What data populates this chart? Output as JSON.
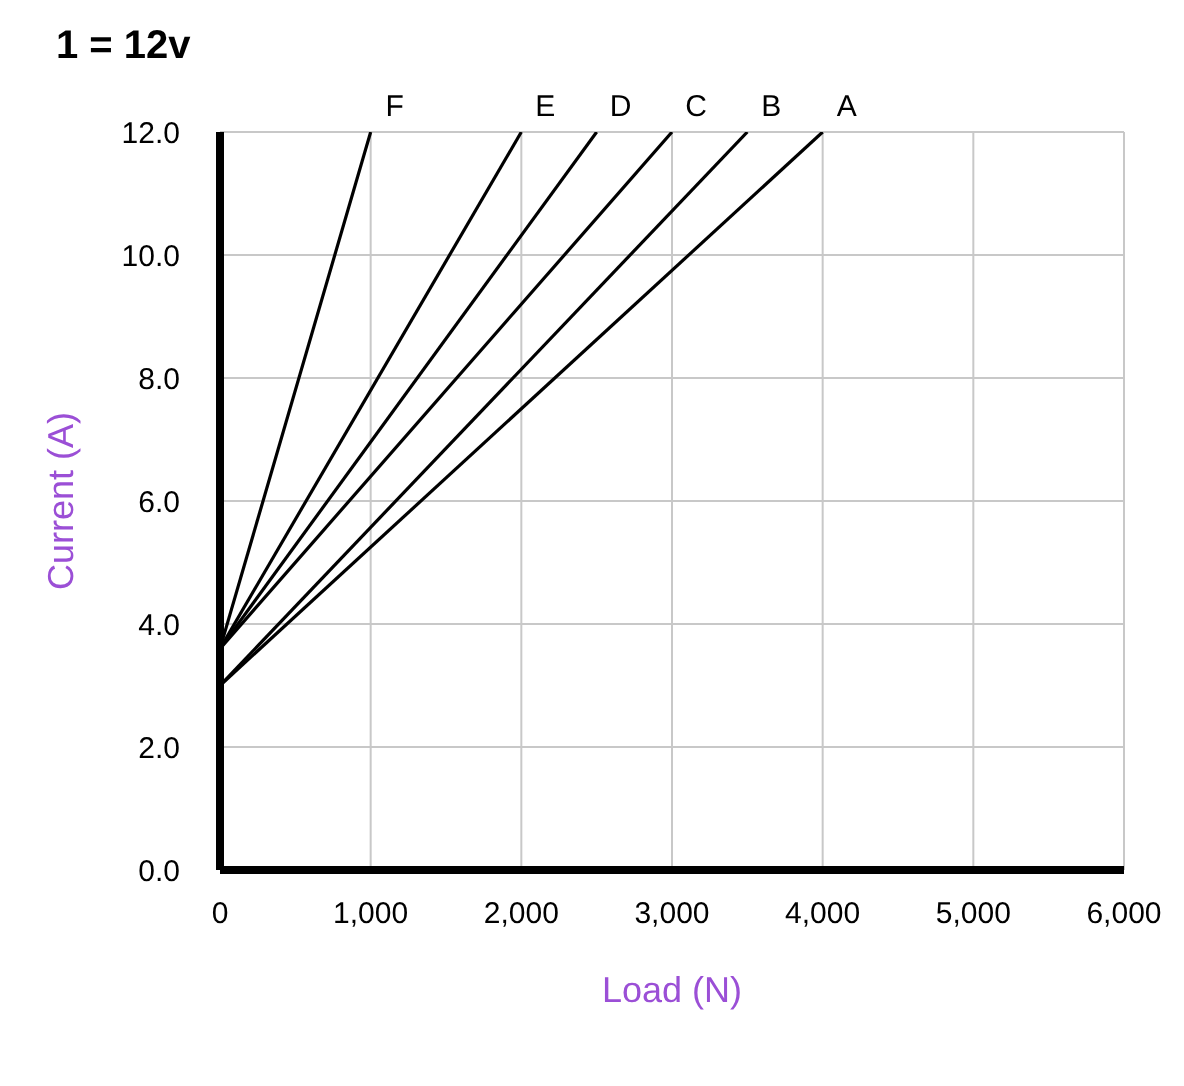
{
  "chart_data": {
    "type": "line",
    "title": "1 = 12v",
    "xlabel": "Load (N)",
    "ylabel": "Current (A)",
    "series": [
      {
        "name": "A",
        "color": "#000000",
        "x": [
          0,
          4000
        ],
        "values": [
          3.0,
          12
        ]
      },
      {
        "name": "B",
        "color": "#000000",
        "x": [
          0,
          3500
        ],
        "values": [
          3.0,
          12
        ]
      },
      {
        "name": "C",
        "color": "#000000",
        "x": [
          0,
          3000
        ],
        "values": [
          3.6,
          12
        ]
      },
      {
        "name": "D",
        "color": "#000000",
        "x": [
          0,
          2500
        ],
        "values": [
          3.6,
          12
        ]
      },
      {
        "name": "E",
        "color": "#000000",
        "x": [
          0,
          2000
        ],
        "values": [
          3.6,
          12
        ]
      },
      {
        "name": "F",
        "color": "#000000",
        "x": [
          0,
          1000
        ],
        "values": [
          3.6,
          12
        ]
      }
    ],
    "xlim": [
      0,
      6000
    ],
    "xticks": [
      0,
      {
        "value": 1000,
        "label": "1,000"
      },
      {
        "value": 2000,
        "label": "2,000"
      },
      {
        "value": 3000,
        "label": "3,000"
      },
      {
        "value": 4000,
        "label": "4,000"
      },
      {
        "value": 5000,
        "label": "5,000"
      },
      {
        "value": 6000,
        "label": "6,000"
      }
    ],
    "ylim": [
      0,
      12
    ],
    "yticks": [
      {
        "value": 0,
        "label": "0.0"
      },
      {
        "value": 2,
        "label": "2.0"
      },
      {
        "value": 4,
        "label": "4.0"
      },
      {
        "value": 6,
        "label": "6.0"
      },
      {
        "value": 8,
        "label": "8.0"
      },
      {
        "value": 10,
        "label": "10.0"
      },
      {
        "value": 12,
        "label": "12.0"
      }
    ],
    "grid": true,
    "marker": "none",
    "line_style": "solid"
  }
}
